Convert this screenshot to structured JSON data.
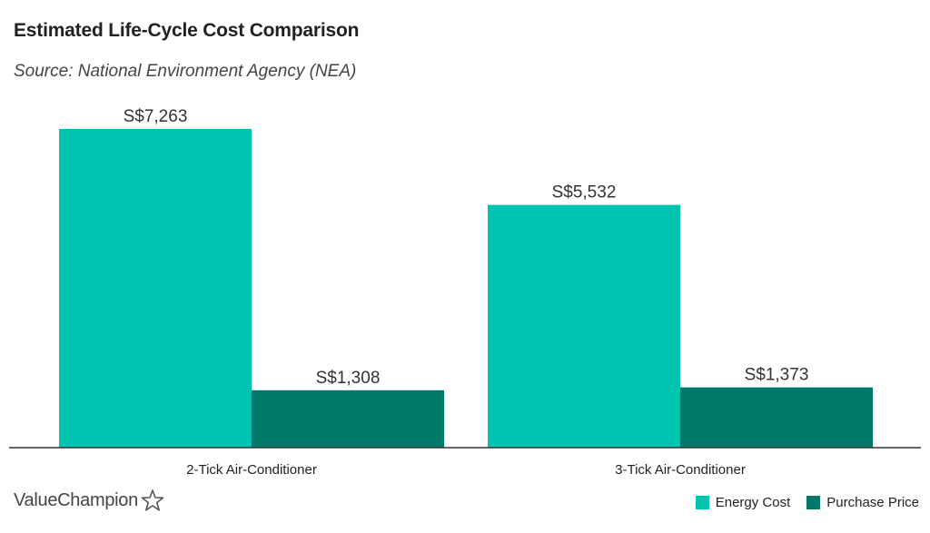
{
  "title": "Estimated Life-Cycle Cost Comparison",
  "subtitle": "Source: National Environment Agency (NEA)",
  "logo_text": "ValueChampion",
  "colors": {
    "energy": "#00c4b0",
    "purchase": "#00796b",
    "axis": "#333333"
  },
  "chart_data": {
    "type": "bar",
    "title": "Estimated Life-Cycle Cost Comparison",
    "xlabel": "",
    "ylabel": "",
    "categories": [
      "2-Tick Air-Conditioner",
      "3-Tick Air-Conditioner"
    ],
    "series": [
      {
        "name": "Energy Cost",
        "values": [
          7263,
          5532
        ],
        "labels": [
          "S$7,263",
          "S$5,532"
        ]
      },
      {
        "name": "Purchase Price",
        "values": [
          1308,
          1373
        ],
        "labels": [
          "S$1,308",
          "S$1,373"
        ]
      }
    ],
    "ylim": [
      0,
      8000
    ],
    "grid": false,
    "legend": "bottom-right"
  }
}
